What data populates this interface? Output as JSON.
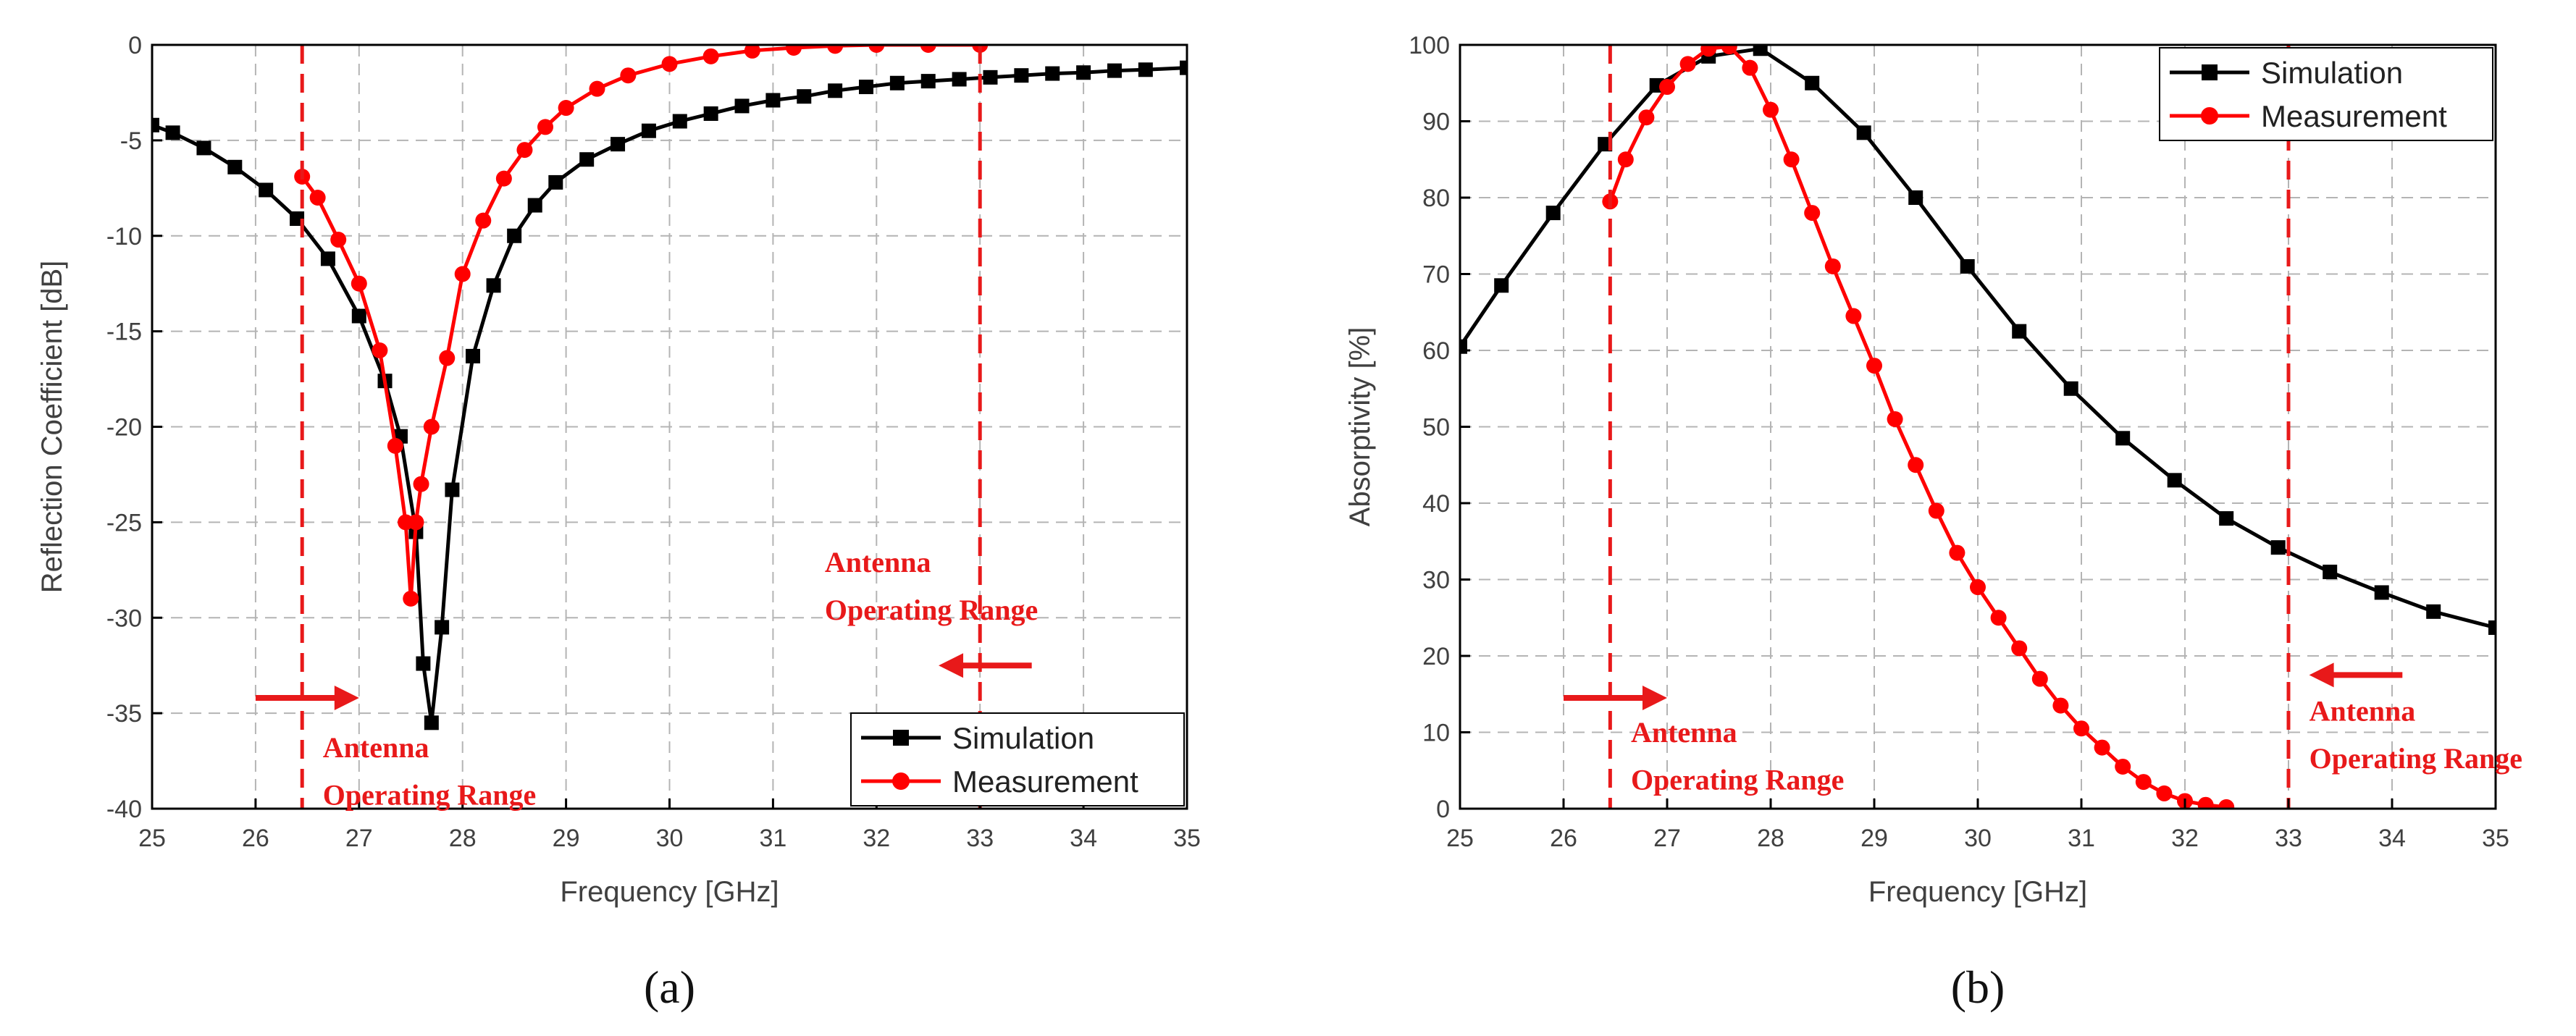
{
  "colors": {
    "simulation": "#000000",
    "measurement": "#ff0000",
    "annotation": "#e8191a",
    "grid": "#b4b4b4"
  },
  "chart_data": [
    {
      "id": "a",
      "type": "line",
      "sublabel": "(a)",
      "xlabel": "Frequency [GHz]",
      "ylabel": "Reflection Coefficient [dB]",
      "xlim": [
        25,
        35
      ],
      "ylim": [
        -40,
        0
      ],
      "xticks": [
        "25",
        "26",
        "27",
        "28",
        "29",
        "30",
        "31",
        "32",
        "33",
        "34",
        "35"
      ],
      "yticks": [
        "0",
        "-5",
        "-10",
        "-15",
        "-20",
        "-25",
        "-30",
        "-35",
        "-40"
      ],
      "grid": true,
      "legend_position": "bottom-right",
      "legend": [
        "Simulation",
        "Measurement"
      ],
      "series": [
        {
          "name": "Simulation",
          "marker": "square",
          "x": [
            25.0,
            25.2,
            25.5,
            25.8,
            26.1,
            26.4,
            26.7,
            27.0,
            27.25,
            27.4,
            27.55,
            27.62,
            27.7,
            27.8,
            27.9,
            28.1,
            28.3,
            28.5,
            28.7,
            28.9,
            29.2,
            29.5,
            29.8,
            30.1,
            30.4,
            30.7,
            31.0,
            31.3,
            31.6,
            31.9,
            32.2,
            32.5,
            32.8,
            33.1,
            33.4,
            33.7,
            34.0,
            34.3,
            34.6,
            35.0
          ],
          "y": [
            -4.2,
            -4.6,
            -5.4,
            -6.4,
            -7.6,
            -9.1,
            -11.2,
            -14.2,
            -17.6,
            -20.5,
            -25.5,
            -32.4,
            -35.5,
            -30.5,
            -23.3,
            -16.3,
            -12.6,
            -10.0,
            -8.4,
            -7.2,
            -6.0,
            -5.2,
            -4.5,
            -4.0,
            -3.6,
            -3.2,
            -2.9,
            -2.7,
            -2.4,
            -2.2,
            -2.0,
            -1.9,
            -1.8,
            -1.7,
            -1.6,
            -1.5,
            -1.45,
            -1.35,
            -1.3,
            -1.2
          ]
        },
        {
          "name": "Measurement",
          "marker": "circle",
          "x": [
            26.45,
            26.6,
            26.8,
            27.0,
            27.2,
            27.35,
            27.45,
            27.5,
            27.55,
            27.6,
            27.7,
            27.85,
            28.0,
            28.2,
            28.4,
            28.6,
            28.8,
            29.0,
            29.3,
            29.6,
            30.0,
            30.4,
            30.8,
            31.2,
            31.6,
            32.0,
            32.5,
            33.0
          ],
          "y": [
            -6.9,
            -8.0,
            -10.2,
            -12.5,
            -16.0,
            -21.0,
            -25.0,
            -29.0,
            -25.0,
            -23.0,
            -20.0,
            -16.4,
            -12.0,
            -9.2,
            -7.0,
            -5.5,
            -4.3,
            -3.3,
            -2.3,
            -1.6,
            -1.0,
            -0.6,
            -0.3,
            -0.15,
            -0.05,
            0.0,
            0.0,
            0.0
          ]
        }
      ],
      "vlines": [
        26.45,
        33.0
      ],
      "annotations": [
        {
          "text": "Antenna",
          "x": 26.65,
          "y": -37.3,
          "anchor": "start"
        },
        {
          "text": "Operating Range",
          "x": 26.65,
          "y": -39.8,
          "anchor": "start"
        },
        {
          "text": "Antenna",
          "x": 31.5,
          "y": -27.6,
          "anchor": "start"
        },
        {
          "text": "Operating Range",
          "x": 31.5,
          "y": -30.1,
          "anchor": "start"
        }
      ],
      "arrows": [
        {
          "x1": 26.0,
          "x2": 27.0,
          "y": -34.2
        },
        {
          "x1": 33.5,
          "x2": 32.6,
          "y": -32.5
        }
      ]
    },
    {
      "id": "b",
      "type": "line",
      "sublabel": "(b)",
      "xlabel": "Frequency [GHz]",
      "ylabel": "Absorptivity [%]",
      "xlim": [
        25,
        35
      ],
      "ylim": [
        0,
        100
      ],
      "xticks": [
        "25",
        "26",
        "27",
        "28",
        "29",
        "30",
        "31",
        "32",
        "33",
        "34",
        "35"
      ],
      "yticks": [
        "100",
        "90",
        "80",
        "70",
        "60",
        "50",
        "40",
        "30",
        "20",
        "10",
        "0"
      ],
      "grid": true,
      "legend_position": "top-right",
      "legend": [
        "Simulation",
        "Measurement"
      ],
      "series": [
        {
          "name": "Simulation",
          "marker": "square",
          "x": [
            25.0,
            25.4,
            25.9,
            26.4,
            26.9,
            27.4,
            27.9,
            28.4,
            28.9,
            29.4,
            29.9,
            30.4,
            30.9,
            31.4,
            31.9,
            32.4,
            32.9,
            33.4,
            33.9,
            34.4,
            35.0
          ],
          "y": [
            60.5,
            68.5,
            78.0,
            87.0,
            94.7,
            98.5,
            99.5,
            95.0,
            88.5,
            80.0,
            71.0,
            62.5,
            55.0,
            48.5,
            43.0,
            38.0,
            34.2,
            31.0,
            28.3,
            25.8,
            23.7
          ]
        },
        {
          "name": "Measurement",
          "marker": "circle",
          "x": [
            26.45,
            26.6,
            26.8,
            27.0,
            27.2,
            27.4,
            27.6,
            27.8,
            28.0,
            28.2,
            28.4,
            28.6,
            28.8,
            29.0,
            29.2,
            29.4,
            29.6,
            29.8,
            30.0,
            30.2,
            30.4,
            30.6,
            30.8,
            31.0,
            31.2,
            31.4,
            31.6,
            31.8,
            32.0,
            32.2,
            32.4
          ],
          "y": [
            79.5,
            85.0,
            90.5,
            94.5,
            97.5,
            99.5,
            99.8,
            97.0,
            91.5,
            85.0,
            78.0,
            71.0,
            64.5,
            58.0,
            51.0,
            45.0,
            39.0,
            33.5,
            29.0,
            25.0,
            21.0,
            17.0,
            13.5,
            10.5,
            8.0,
            5.5,
            3.5,
            2.0,
            1.0,
            0.5,
            0.2
          ]
        }
      ],
      "vlines": [
        26.45,
        33.0
      ],
      "annotations": [
        {
          "text": "Antenna",
          "x": 26.65,
          "y": 8.7,
          "anchor": "start"
        },
        {
          "text": "Operating Range",
          "x": 26.65,
          "y": 2.5,
          "anchor": "start"
        },
        {
          "text": "Antenna",
          "x": 33.2,
          "y": 11.5,
          "anchor": "start"
        },
        {
          "text": "Operating Range",
          "x": 33.2,
          "y": 5.3,
          "anchor": "start"
        }
      ],
      "arrows": [
        {
          "x1": 26.0,
          "x2": 27.0,
          "y": 14.5
        },
        {
          "x1": 34.1,
          "x2": 33.2,
          "y": 17.5
        }
      ]
    }
  ]
}
